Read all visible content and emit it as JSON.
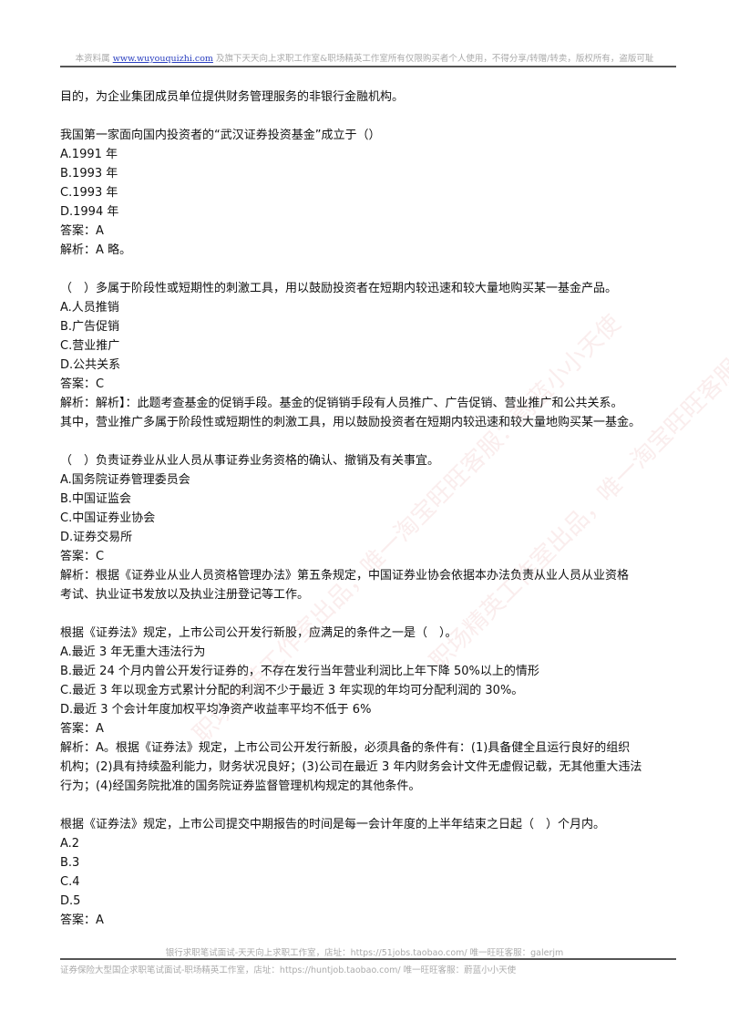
{
  "header": {
    "prefix": "本资料属",
    "link": "www.wuyouquizhi.com",
    "suffix": "及旗下天天向上求职工作室&职场精英工作室所有仅限购买者个人使用，不得分享/转赠/转卖，版权所有，盗版可耻"
  },
  "paragraphs": [
    [
      "目的，为企业集团成员单位提供财务管理服务的非银行金融机构。"
    ],
    [
      "我国第一家面向国内投资者的“武汉证券投资基金”成立于（）",
      "A.1991 年",
      "B.1993 年",
      "C.1993 年",
      "D.1994 年",
      "答案：A",
      "解析：A 略。"
    ],
    [
      "（　）多属于阶段性或短期性的刺激工具，用以鼓励投资者在短期内较迅速和较大量地购买某一基金产品。",
      "A.人员推销",
      "B.广告促销",
      "C.营业推广",
      "D.公共关系",
      "答案：C",
      "解析：解析】：此题考查基金的促销手段。基金的促销销手段有人员推广、广告促销、营业推广和公共关系。",
      "其中，营业推广多属于阶段性或短期性的刺激工具，用以鼓励投资者在短期内较迅速和较大量地购买某一基金。"
    ],
    [
      "（　）负责证券业从业人员从事证券业务资格的确认、撤销及有关事宜。",
      "A.国务院证券管理委员会",
      "B.中国证监会",
      "C.中国证券业协会",
      "D.证券交易所",
      "答案：C",
      "解析：根据《证券业从业人员资格管理办法》第五条规定，中国证券业协会依据本办法负责从业人员从业资格",
      "考试、执业证书发放以及执业注册登记等工作。"
    ],
    [
      "根据《证券法》规定，上市公司公开发行新股，应满足的条件之一是（　）。",
      "A.最近 3 年无重大违法行为",
      "B.最近 24 个月内曾公开发行证券的，不存在发行当年营业利润比上年下降 50%以上的情形",
      "C.最近 3 年以现金方式累计分配的利润不少于最近 3 年实现的年均可分配利润的 30%。",
      "D.最近 3 个会计年度加权平均净资产收益率平均不低于 6%",
      "答案：A",
      "解析：A。根据《证券法》规定，上市公司公开发行新股，必须具备的条件有：(1)具备健全且运行良好的组织",
      "机构；(2)具有持续盈利能力，财务状况良好；(3)公司在最近 3 年内财务会计文件无虚假记载，无其他重大违法",
      "行为；(4)经国务院批准的国务院证券监督管理机构规定的其他条件。"
    ],
    [
      "根据《证券法》规定，上市公司提交中期报告的时间是每一会计年度的上半年结束之日起（　）个月内。",
      "A.2",
      "B.3",
      "C.4",
      "D.5",
      "答案：A"
    ]
  ],
  "footer": {
    "line1": "银行求职笔试面试-天天向上求职工作室，店址：https://51jobs.taobao.com/ 唯一旺旺客服：galerjm",
    "line2": "证券保险大型国企求职笔试面试-职场精英工作室，店址：https://huntjob.taobao.com/ 唯一旺旺客服：蔚蓝小小天使"
  },
  "watermark": "职场精英工作室出品，唯一淘宝旺旺客服：蔚蓝小小天使"
}
